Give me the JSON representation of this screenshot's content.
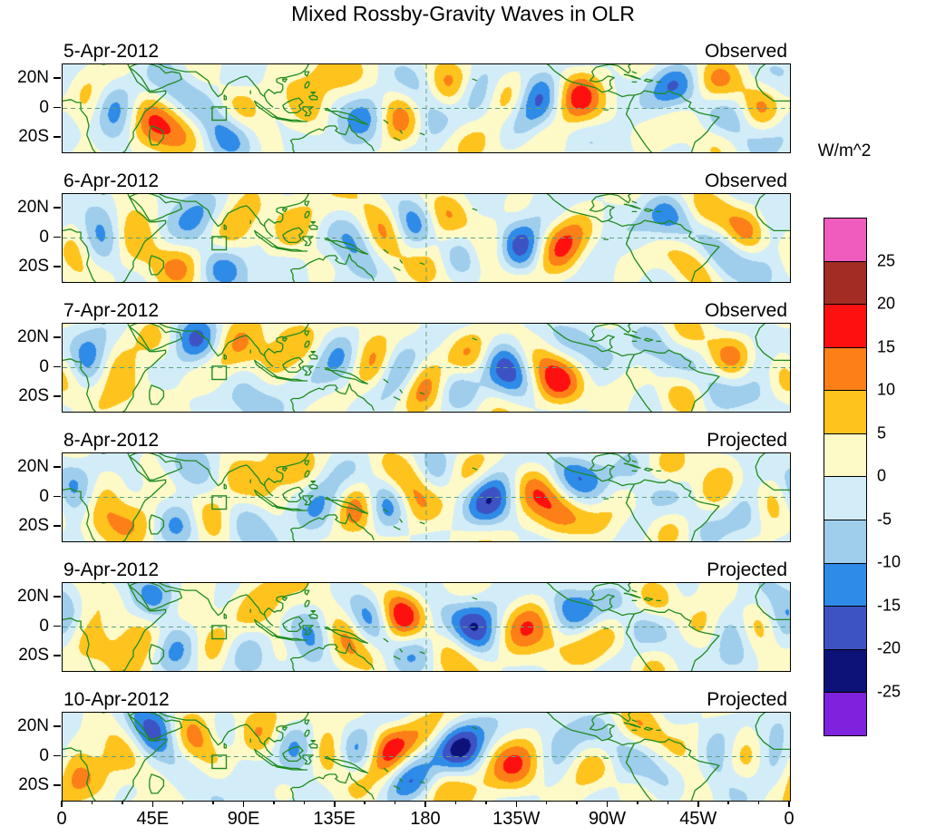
{
  "title": "Mixed Rossby-Gravity Waves in OLR",
  "chart_data": {
    "type": "heatmap",
    "variant": "filled_contour_map_multipanel",
    "title": "Mixed Rossby-Gravity Waves in OLR",
    "panels": [
      {
        "date": "5-Apr-2012",
        "kind": "Observed"
      },
      {
        "date": "6-Apr-2012",
        "kind": "Observed"
      },
      {
        "date": "7-Apr-2012",
        "kind": "Observed"
      },
      {
        "date": "8-Apr-2012",
        "kind": "Projected"
      },
      {
        "date": "9-Apr-2012",
        "kind": "Projected"
      },
      {
        "date": "10-Apr-2012",
        "kind": "Projected"
      }
    ],
    "x_axis": {
      "tick_labels": [
        "0",
        "45E",
        "90E",
        "135E",
        "180",
        "135W",
        "90W",
        "45W",
        "0"
      ],
      "range_deg_lon": [
        0,
        360
      ]
    },
    "y_axis": {
      "tick_labels": [
        "20N",
        "0",
        "20S"
      ],
      "range_deg_lat": [
        30,
        -30
      ]
    },
    "colorbar": {
      "units": "W/m^2",
      "tick_labels": [
        "25",
        "20",
        "15",
        "10",
        "5",
        "0",
        "-5",
        "-10",
        "-15",
        "-20",
        "-25"
      ],
      "levels": [
        -25,
        -20,
        -15,
        -10,
        -5,
        0,
        5,
        10,
        15,
        20,
        25
      ],
      "colors_top_to_bottom": [
        "#F05BBE",
        "#A32C24",
        "#FF1010",
        "#FC7F18",
        "#FFC31E",
        "#FEFAC8",
        "#D3EDF8",
        "#9FCDEC",
        "#2E8BE8",
        "#3D53C4",
        "#0D1278",
        "#7F22DD"
      ]
    },
    "map": {
      "coastline_color": "#1F8B1F",
      "gridline_color": "#5BA283",
      "equator_dashed": true,
      "dateline_dashed": true,
      "region_box": {
        "lon_min": 74,
        "lon_max": 81,
        "lat_min": -8,
        "lat_max": 1
      }
    }
  }
}
